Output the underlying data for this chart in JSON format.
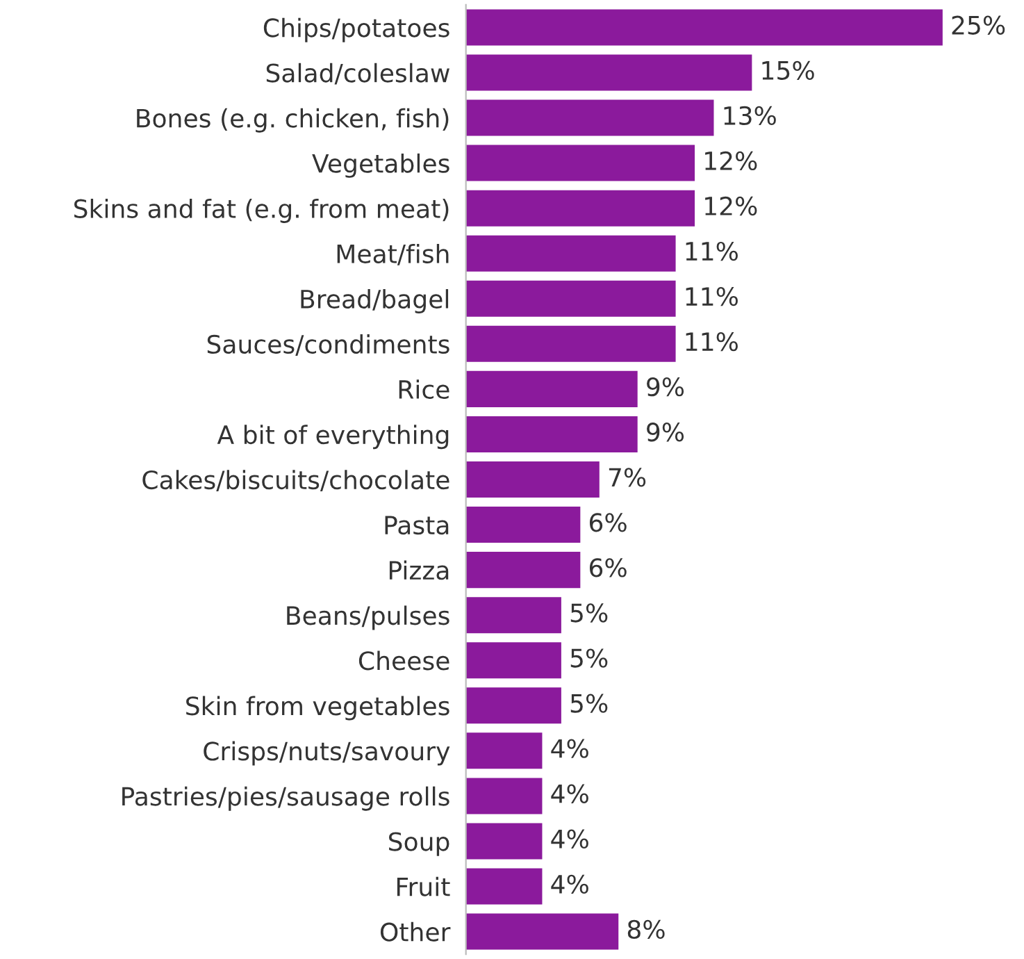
{
  "chart_data": {
    "type": "bar",
    "orientation": "horizontal",
    "categories": [
      "Chips/potatoes",
      "Salad/coleslaw",
      "Bones (e.g. chicken, fish)",
      "Vegetables",
      "Skins and fat (e.g. from meat)",
      "Meat/fish",
      "Bread/bagel",
      "Sauces/condiments",
      "Rice",
      "A bit of everything",
      "Cakes/biscuits/chocolate",
      "Pasta",
      "Pizza",
      "Beans/pulses",
      "Cheese",
      "Skin from vegetables",
      "Crisps/nuts/savoury",
      "Pastries/pies/sausage rolls",
      "Soup",
      "Fruit",
      "Other"
    ],
    "values": [
      25,
      15,
      13,
      12,
      12,
      11,
      11,
      11,
      9,
      9,
      7,
      6,
      6,
      5,
      5,
      5,
      4,
      4,
      4,
      4,
      8
    ],
    "value_labels": [
      "25%",
      "15%",
      "13%",
      "12%",
      "12%",
      "11%",
      "11%",
      "11%",
      "9%",
      "9%",
      "7%",
      "6%",
      "6%",
      "5%",
      "5%",
      "5%",
      "4%",
      "4%",
      "4%",
      "4%",
      "8%"
    ],
    "color": "#8b1a9c",
    "tick_labels": "y",
    "grid": false,
    "legend": false
  }
}
